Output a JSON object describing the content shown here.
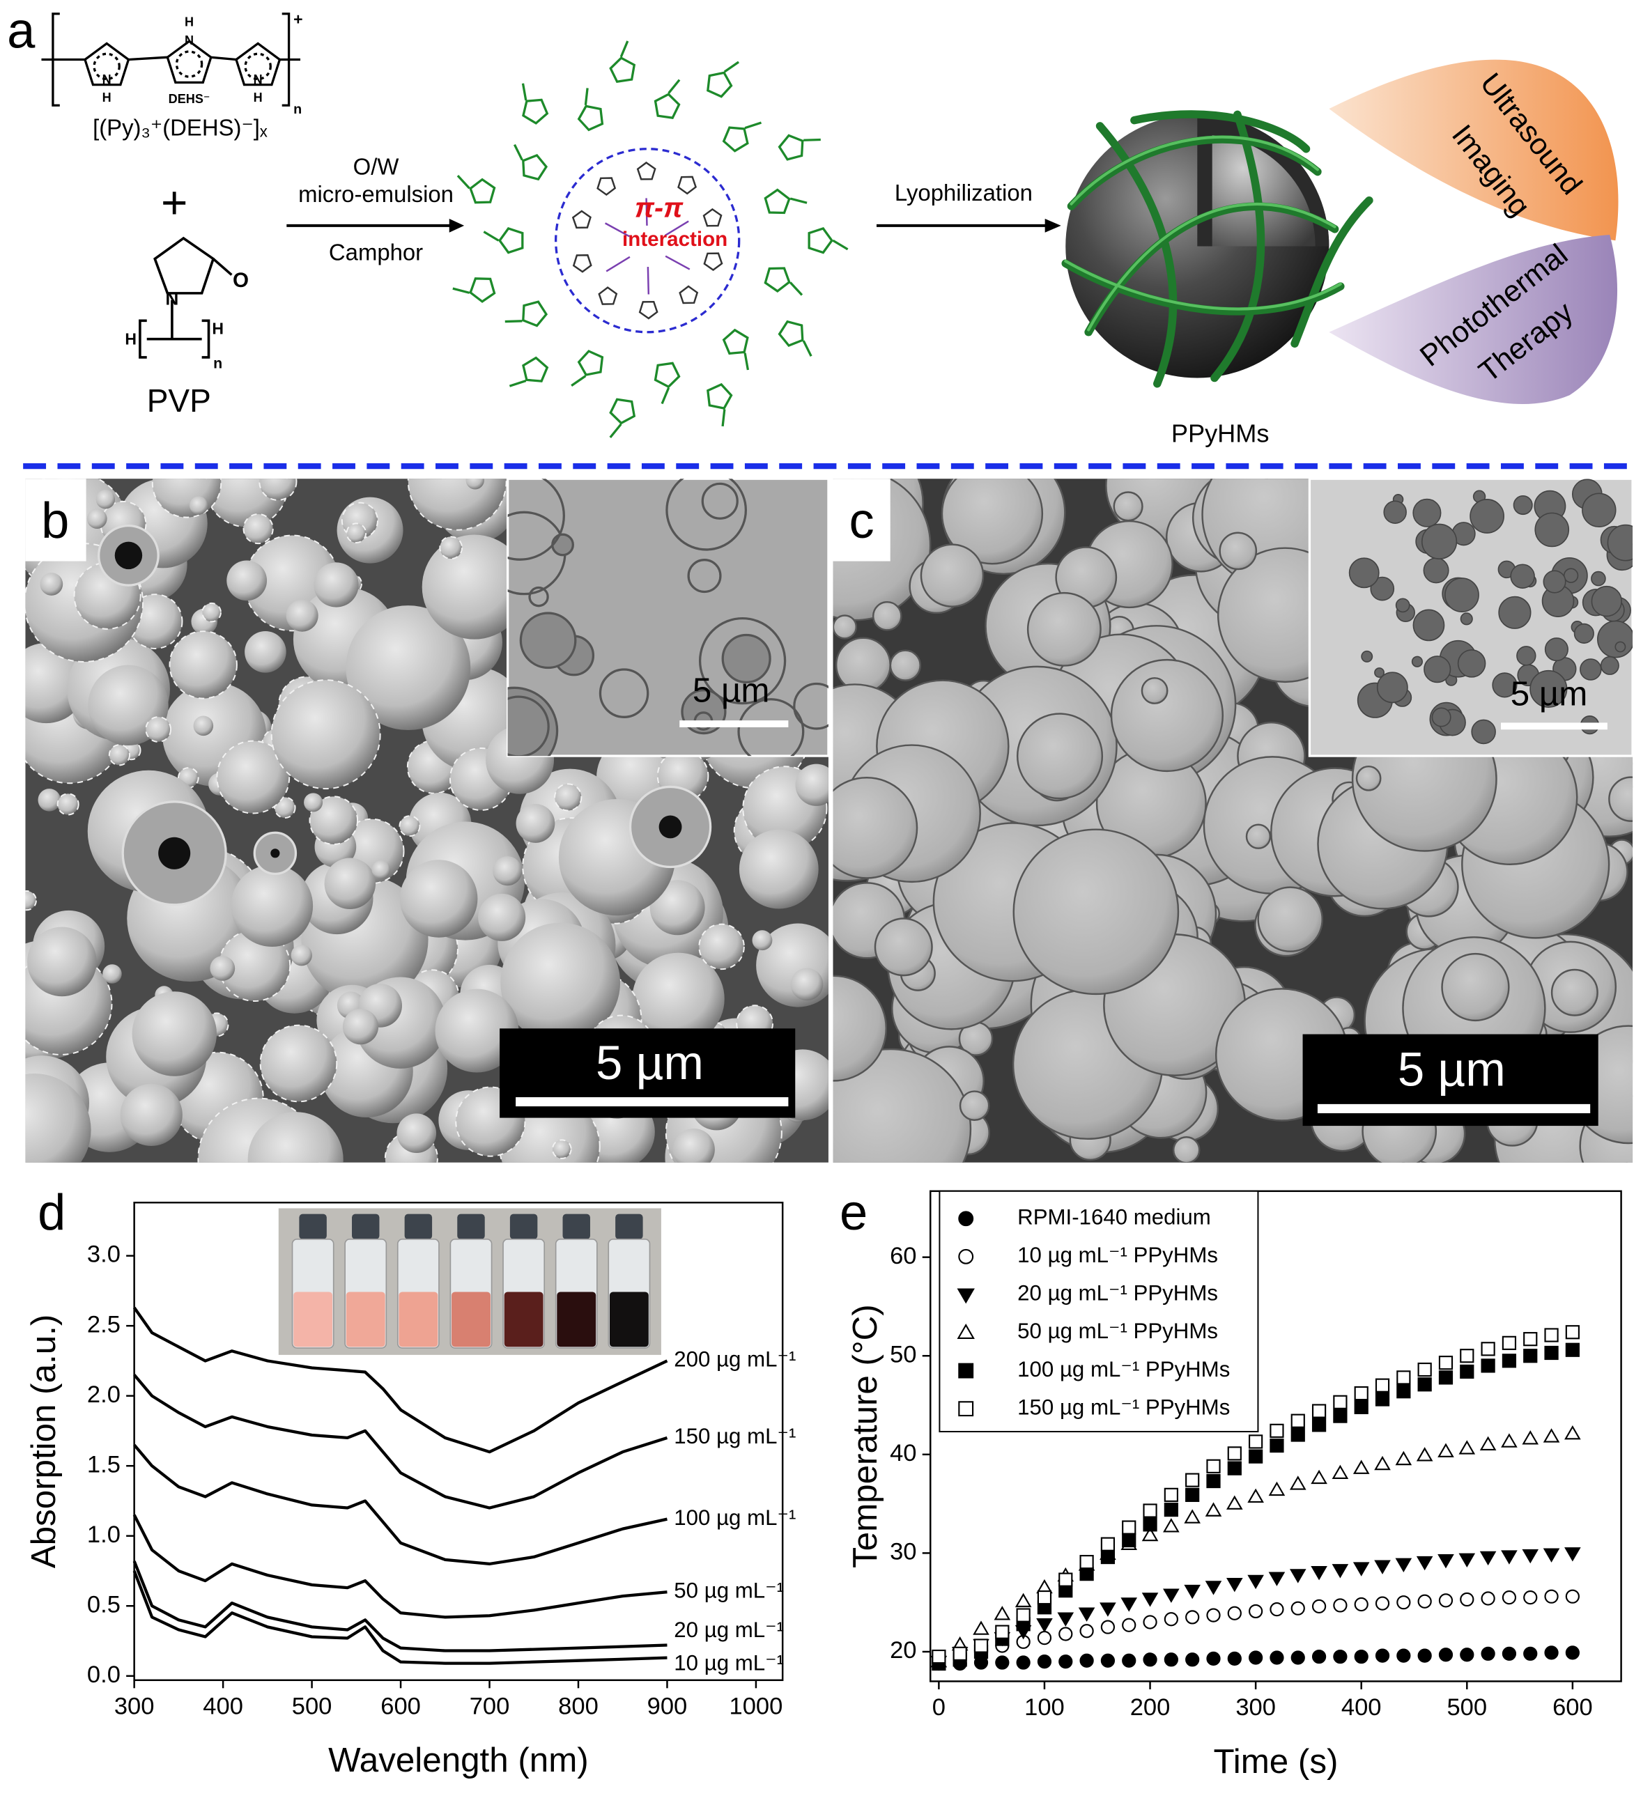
{
  "panel_a": {
    "label": "a",
    "polypyrrole": {
      "atoms": [
        "N",
        "H",
        "H",
        "N",
        "N",
        "H"
      ],
      "dopant": "DEHS⁻",
      "charge": "+",
      "repeat": "n",
      "formula": "[(Py)₃⁺(DEHS)⁻]ₓ"
    },
    "plus": "+",
    "pvp": {
      "atoms": [
        "O",
        "N",
        "H",
        "H",
        "n"
      ],
      "name": "PVP"
    },
    "step1": [
      "O/W",
      "micro-emulsion",
      "Camphor"
    ],
    "micelle": [
      "π-π",
      "interaction"
    ],
    "step2": "Lyophilization",
    "product": "PPyHMs",
    "applications": [
      [
        "Ultrasound",
        "Imaging"
      ],
      [
        "Photothermal",
        "Therapy"
      ]
    ]
  },
  "panel_b": {
    "label": "b",
    "scale_bar": "5 µm",
    "inset_scale_bar": "5 µm"
  },
  "panel_c": {
    "label": "c",
    "scale_bar": "5 µm",
    "inset_scale_bar": "5 µm"
  },
  "chart_data": [
    {
      "type": "line",
      "label": "d",
      "x_label": "Wavelength (nm)",
      "y_label": "Absorption (a.u.)",
      "xlim": [
        300,
        1030
      ],
      "ylim": [
        -0.03,
        3.38
      ],
      "xticks": [
        300,
        400,
        500,
        600,
        700,
        800,
        900,
        1000
      ],
      "yticks": [
        {
          "value": 0,
          "label": "0.0"
        },
        0.5,
        {
          "value": 1,
          "label": "1.0"
        },
        1.5,
        {
          "value": 2,
          "label": "2.0"
        },
        2.5,
        {
          "value": 3,
          "label": "3.0"
        }
      ],
      "x": [
        300,
        320,
        350,
        380,
        410,
        450,
        500,
        540,
        560,
        580,
        600,
        650,
        700,
        750,
        800,
        850,
        900
      ],
      "series": [
        {
          "name": "10 µg mL⁻¹",
          "color": "#000000",
          "values": [
            0.75,
            0.42,
            0.33,
            0.28,
            0.45,
            0.35,
            0.28,
            0.27,
            0.35,
            0.18,
            0.1,
            0.09,
            0.09,
            0.1,
            0.11,
            0.12,
            0.13
          ]
        },
        {
          "name": "20 µg mL⁻¹",
          "color": "#000000",
          "values": [
            0.82,
            0.5,
            0.4,
            0.35,
            0.52,
            0.42,
            0.35,
            0.33,
            0.4,
            0.27,
            0.2,
            0.18,
            0.18,
            0.19,
            0.2,
            0.21,
            0.22
          ]
        },
        {
          "name": "50 µg mL⁻¹",
          "color": "#000000",
          "values": [
            1.15,
            0.9,
            0.75,
            0.68,
            0.8,
            0.72,
            0.65,
            0.63,
            0.68,
            0.55,
            0.45,
            0.42,
            0.43,
            0.47,
            0.52,
            0.57,
            0.6
          ]
        },
        {
          "name": "100 µg mL⁻¹",
          "color": "#000000",
          "values": [
            1.65,
            1.5,
            1.35,
            1.28,
            1.38,
            1.3,
            1.22,
            1.2,
            1.25,
            1.1,
            0.95,
            0.83,
            0.8,
            0.85,
            0.95,
            1.05,
            1.12
          ]
        },
        {
          "name": "150 µg mL⁻¹",
          "color": "#000000",
          "values": [
            2.15,
            2.0,
            1.88,
            1.78,
            1.85,
            1.78,
            1.72,
            1.7,
            1.75,
            1.6,
            1.45,
            1.28,
            1.2,
            1.28,
            1.45,
            1.6,
            1.7
          ]
        },
        {
          "name": "200 µg mL⁻¹",
          "color": "#000000",
          "values": [
            2.63,
            2.45,
            2.35,
            2.25,
            2.32,
            2.25,
            2.2,
            2.18,
            2.17,
            2.05,
            1.9,
            1.7,
            1.6,
            1.75,
            1.95,
            2.1,
            2.25
          ]
        }
      ]
    },
    {
      "type": "scatter",
      "label": "e",
      "x_label": "Time (s)",
      "y_label": "Temperature (°C)",
      "xlim": [
        -8,
        646
      ],
      "ylim": [
        17,
        66.7
      ],
      "xticks": [
        0,
        100,
        200,
        300,
        400,
        500,
        600
      ],
      "yticks": [
        20,
        30,
        40,
        50,
        60
      ],
      "legend": "upper left",
      "x": [
        0,
        20,
        40,
        60,
        80,
        100,
        120,
        140,
        160,
        180,
        200,
        220,
        240,
        260,
        280,
        300,
        320,
        340,
        360,
        380,
        400,
        420,
        440,
        460,
        480,
        500,
        520,
        540,
        560,
        580,
        600
      ],
      "series": [
        {
          "name": "RPMI-1640 medium",
          "color": "#000000",
          "marker": "circle",
          "filled": true,
          "values": [
            18.8,
            18.8,
            18.9,
            18.9,
            18.9,
            19.0,
            19.0,
            19.1,
            19.1,
            19.1,
            19.2,
            19.2,
            19.2,
            19.3,
            19.3,
            19.4,
            19.4,
            19.4,
            19.5,
            19.5,
            19.5,
            19.6,
            19.6,
            19.6,
            19.7,
            19.7,
            19.8,
            19.8,
            19.8,
            19.9,
            19.9
          ]
        },
        {
          "name": "10 µg mL⁻¹ PPyHMs",
          "color": "#000000",
          "marker": "circle",
          "filled": false,
          "values": [
            19.0,
            19.6,
            20.1,
            20.6,
            21.0,
            21.4,
            21.8,
            22.1,
            22.5,
            22.7,
            23.0,
            23.3,
            23.5,
            23.7,
            23.9,
            24.1,
            24.3,
            24.4,
            24.6,
            24.7,
            24.8,
            24.9,
            25.0,
            25.1,
            25.2,
            25.3,
            25.4,
            25.5,
            25.5,
            25.6,
            25.6
          ]
        },
        {
          "name": "20 µg mL⁻¹ PPyHMs",
          "color": "#000000",
          "marker": "triangle-down",
          "filled": true,
          "values": [
            19.0,
            19.9,
            20.7,
            21.4,
            22.1,
            22.8,
            23.4,
            23.9,
            24.4,
            24.9,
            25.4,
            25.8,
            26.2,
            26.6,
            26.9,
            27.2,
            27.5,
            27.8,
            28.1,
            28.3,
            28.5,
            28.7,
            28.9,
            29.1,
            29.3,
            29.4,
            29.6,
            29.7,
            29.8,
            29.9,
            30.0
          ]
        },
        {
          "name": "50 µg mL⁻¹ PPyHMs",
          "color": "#000000",
          "marker": "triangle-up",
          "filled": false,
          "values": [
            19.0,
            20.7,
            22.3,
            23.8,
            25.1,
            26.5,
            27.7,
            28.8,
            29.9,
            30.9,
            31.8,
            32.7,
            33.6,
            34.3,
            35.0,
            35.7,
            36.4,
            37.0,
            37.6,
            38.1,
            38.6,
            39.0,
            39.5,
            39.9,
            40.3,
            40.6,
            41.0,
            41.3,
            41.6,
            41.8,
            42.1
          ]
        },
        {
          "name": "100 µg mL⁻¹ PPyHMs",
          "color": "#000000",
          "marker": "square",
          "filled": true,
          "values": [
            18.8,
            19.2,
            20.0,
            21.3,
            22.8,
            24.5,
            26.2,
            27.9,
            29.6,
            31.3,
            32.9,
            34.4,
            35.9,
            37.3,
            38.6,
            39.8,
            40.9,
            42.0,
            43.0,
            43.9,
            44.8,
            45.6,
            46.4,
            47.1,
            47.8,
            48.4,
            49.0,
            49.5,
            50.0,
            50.3,
            50.6
          ]
        },
        {
          "name": "150 µg mL⁻¹ PPyHMs",
          "color": "#000000",
          "marker": "square",
          "filled": false,
          "values": [
            19.5,
            19.8,
            20.6,
            22.0,
            23.7,
            25.5,
            27.3,
            29.1,
            30.9,
            32.6,
            34.3,
            35.9,
            37.4,
            38.8,
            40.1,
            41.3,
            42.4,
            43.4,
            44.4,
            45.3,
            46.2,
            47.0,
            47.8,
            48.6,
            49.3,
            50.0,
            50.7,
            51.3,
            51.7,
            52.1,
            52.4
          ]
        }
      ]
    }
  ]
}
